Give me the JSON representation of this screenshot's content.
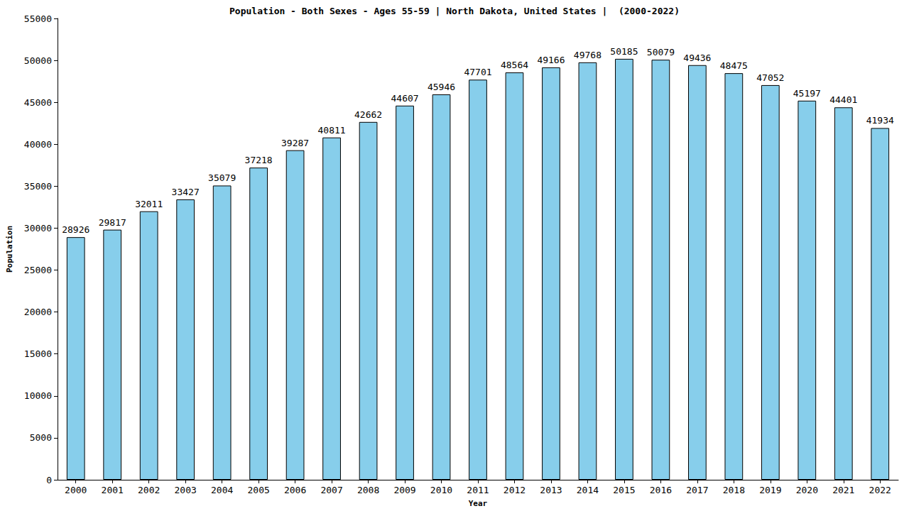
{
  "chart_data": {
    "type": "bar",
    "title": "Population - Both Sexes - Ages 55-59 | North Dakota, United States |  (2000-2022)",
    "x_label": "Year",
    "y_label": "Population",
    "categories": [
      "2000",
      "2001",
      "2002",
      "2003",
      "2004",
      "2005",
      "2006",
      "2007",
      "2008",
      "2009",
      "2010",
      "2011",
      "2012",
      "2013",
      "2014",
      "2015",
      "2016",
      "2017",
      "2018",
      "2019",
      "2020",
      "2021",
      "2022"
    ],
    "values": [
      28926,
      29817,
      32011,
      33427,
      35079,
      37218,
      39287,
      40811,
      42662,
      44607,
      45946,
      47701,
      48564,
      49166,
      49768,
      50185,
      50079,
      49436,
      48475,
      47052,
      45197,
      44401,
      41934
    ],
    "color": "#87ceeb",
    "ylim": [
      0,
      55000
    ],
    "yticks": [
      0,
      5000,
      10000,
      15000,
      20000,
      25000,
      30000,
      35000,
      40000,
      45000,
      50000,
      55000
    ],
    "grid": false,
    "data_labels": true
  }
}
